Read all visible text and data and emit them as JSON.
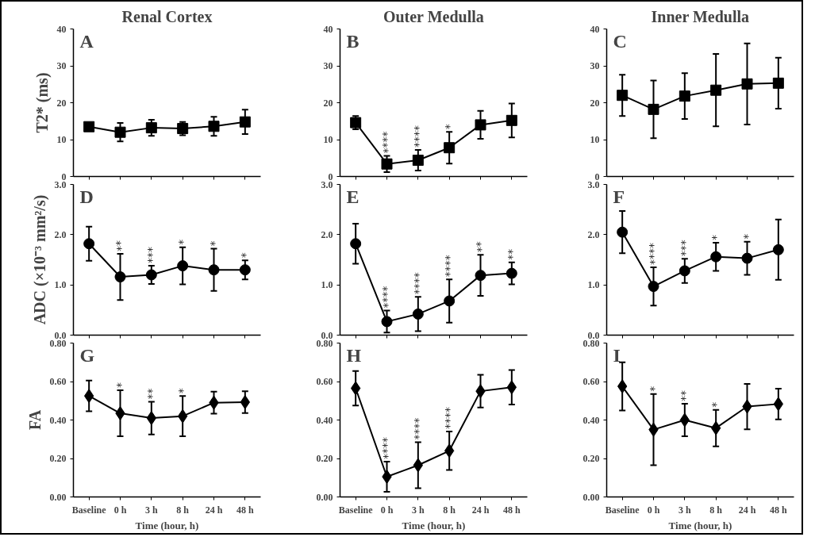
{
  "chart_data": [
    {
      "type": "line",
      "title": "Renal Cortex",
      "ylabel": "T2* (ms)",
      "categories": [
        "Baseline",
        "0 h",
        "3 h",
        "8 h",
        "24 h",
        "48 h"
      ],
      "tick_labels": "y",
      "marker": "square",
      "grid": false,
      "ylim": [
        0,
        40
      ],
      "yticks": [
        0,
        10,
        20,
        30,
        40
      ],
      "series": [
        {
          "color": "#000000",
          "values": [
            13.5,
            12.0,
            13.2,
            13.0,
            13.6,
            14.8
          ],
          "errors": [
            1.0,
            2.5,
            2.2,
            1.8,
            2.6,
            3.3
          ]
        }
      ],
      "annotations": [
        "A"
      ]
    },
    {
      "type": "line",
      "title": "Outer Medulla",
      "categories": [
        "Baseline",
        "0 h",
        "3 h",
        "8 h",
        "24 h",
        "48 h"
      ],
      "tick_labels": "y",
      "marker": "square",
      "grid": false,
      "ylim": [
        0,
        40
      ],
      "yticks": [
        0,
        10,
        20,
        30,
        40
      ],
      "series": [
        {
          "color": "#000000",
          "values": [
            14.6,
            3.4,
            4.4,
            7.8,
            14.0,
            15.2
          ],
          "errors": [
            1.8,
            2.2,
            2.8,
            4.3,
            3.8,
            4.6
          ]
        }
      ],
      "annotations": [
        "B",
        {
          "text": "****",
          "x": "0 h",
          "y": 5.6
        },
        {
          "text": "****",
          "x": "3 h",
          "y": 7.2
        },
        {
          "text": "*",
          "x": "8 h",
          "y": 12.1
        }
      ]
    },
    {
      "type": "line",
      "title": "Inner Medulla",
      "categories": [
        "Baseline",
        "0 h",
        "3 h",
        "8 h",
        "24 h",
        "48 h"
      ],
      "tick_labels": "y",
      "marker": "square",
      "grid": false,
      "ylim": [
        0,
        40
      ],
      "yticks": [
        0,
        10,
        20,
        30,
        40
      ],
      "series": [
        {
          "color": "#000000",
          "values": [
            22.0,
            18.2,
            21.8,
            23.4,
            25.1,
            25.3
          ],
          "errors": [
            5.6,
            7.8,
            6.2,
            9.8,
            11.0,
            6.9
          ]
        }
      ],
      "annotations": [
        "C"
      ]
    },
    {
      "type": "line",
      "ylabel": "ADC (×10⁻³ mm²/s)",
      "categories": [
        "Baseline",
        "0 h",
        "3 h",
        "8 h",
        "24 h",
        "48 h"
      ],
      "tick_labels": "y",
      "marker": "circle",
      "grid": false,
      "ylim": [
        0,
        3
      ],
      "yticks": [
        {
          "value": 0,
          "label": "0.0"
        },
        {
          "value": 1,
          "label": "1.0"
        },
        {
          "value": 2,
          "label": "2.0"
        },
        {
          "value": 3,
          "label": "3.0"
        }
      ],
      "series": [
        {
          "color": "#000000",
          "values": [
            1.82,
            1.16,
            1.2,
            1.38,
            1.3,
            1.3
          ],
          "errors": [
            0.34,
            0.46,
            0.18,
            0.37,
            0.42,
            0.19
          ]
        }
      ],
      "annotations": [
        "D",
        {
          "text": "**",
          "x": "0 h",
          "y": 1.62
        },
        {
          "text": "***",
          "x": "3 h",
          "y": 1.38
        },
        {
          "text": "*",
          "x": "8 h",
          "y": 1.75
        },
        {
          "text": "*",
          "x": "24 h",
          "y": 1.72
        },
        {
          "text": "*",
          "x": "48 h",
          "y": 1.49
        }
      ]
    },
    {
      "type": "line",
      "categories": [
        "Baseline",
        "0 h",
        "3 h",
        "8 h",
        "24 h",
        "48 h"
      ],
      "tick_labels": "y",
      "marker": "circle",
      "grid": false,
      "ylim": [
        0,
        3
      ],
      "yticks": [
        {
          "value": 0,
          "label": "0.0"
        },
        {
          "value": 1,
          "label": "1.0"
        },
        {
          "value": 2,
          "label": "2.0"
        },
        {
          "value": 3,
          "label": "3.0"
        }
      ],
      "series": [
        {
          "color": "#000000",
          "values": [
            1.82,
            0.27,
            0.42,
            0.68,
            1.19,
            1.23
          ],
          "errors": [
            0.4,
            0.22,
            0.34,
            0.43,
            0.41,
            0.22
          ]
        }
      ],
      "annotations": [
        "E",
        {
          "text": "****",
          "x": "0 h",
          "y": 0.49
        },
        {
          "text": "****",
          "x": "3 h",
          "y": 0.76
        },
        {
          "text": "****",
          "x": "8 h",
          "y": 1.11
        },
        {
          "text": "**",
          "x": "24 h",
          "y": 1.6
        },
        {
          "text": "**",
          "x": "48 h",
          "y": 1.45
        }
      ]
    },
    {
      "type": "line",
      "categories": [
        "Baseline",
        "0 h",
        "3 h",
        "8 h",
        "24 h",
        "48 h"
      ],
      "tick_labels": "y",
      "marker": "circle",
      "grid": false,
      "ylim": [
        0,
        3
      ],
      "yticks": [
        {
          "value": 0,
          "label": "0.0"
        },
        {
          "value": 1,
          "label": "1.0"
        },
        {
          "value": 2,
          "label": "2.0"
        },
        {
          "value": 3,
          "label": "3.0"
        }
      ],
      "series": [
        {
          "color": "#000000",
          "values": [
            2.05,
            0.97,
            1.28,
            1.56,
            1.53,
            1.7
          ],
          "errors": [
            0.42,
            0.38,
            0.24,
            0.28,
            0.33,
            0.6
          ]
        }
      ],
      "annotations": [
        "F",
        {
          "text": "****",
          "x": "0 h",
          "y": 1.35
        },
        {
          "text": "***",
          "x": "3 h",
          "y": 1.52
        },
        {
          "text": "*",
          "x": "8 h",
          "y": 1.84
        },
        {
          "text": "*",
          "x": "24 h",
          "y": 1.86
        }
      ]
    },
    {
      "type": "line",
      "ylabel": "FA",
      "xlabel": "Time (hour, h)",
      "categories": [
        "Baseline",
        "0 h",
        "3 h",
        "8 h",
        "24 h",
        "48 h"
      ],
      "marker": "diamond",
      "grid": false,
      "ylim": [
        0,
        0.8
      ],
      "yticks": [
        {
          "value": 0,
          "label": "0.00"
        },
        {
          "value": 0.2,
          "label": "0.20"
        },
        {
          "value": 0.4,
          "label": "0.40"
        },
        {
          "value": 0.6,
          "label": "0.60"
        },
        {
          "value": 0.8,
          "label": "0.80"
        }
      ],
      "series": [
        {
          "color": "#000000",
          "values": [
            0.525,
            0.435,
            0.41,
            0.42,
            0.49,
            0.493
          ],
          "errors": [
            0.08,
            0.12,
            0.085,
            0.105,
            0.057,
            0.057
          ]
        }
      ],
      "annotations": [
        "G",
        {
          "text": "*",
          "x": "0 h",
          "y": 0.555
        },
        {
          "text": "**",
          "x": "3 h",
          "y": 0.495
        },
        {
          "text": "*",
          "x": "8 h",
          "y": 0.525
        }
      ]
    },
    {
      "type": "line",
      "xlabel": "Time (hour, h)",
      "categories": [
        "Baseline",
        "0 h",
        "3 h",
        "8 h",
        "24 h",
        "48 h"
      ],
      "marker": "diamond",
      "grid": false,
      "ylim": [
        0,
        0.8
      ],
      "yticks": [
        {
          "value": 0,
          "label": "0.00"
        },
        {
          "value": 0.2,
          "label": "0.20"
        },
        {
          "value": 0.4,
          "label": "0.40"
        },
        {
          "value": 0.6,
          "label": "0.60"
        },
        {
          "value": 0.8,
          "label": "0.80"
        }
      ],
      "series": [
        {
          "color": "#000000",
          "values": [
            0.565,
            0.105,
            0.165,
            0.24,
            0.55,
            0.57
          ],
          "errors": [
            0.09,
            0.078,
            0.12,
            0.1,
            0.085,
            0.09
          ]
        }
      ],
      "annotations": [
        "H",
        {
          "text": "****",
          "x": "0 h",
          "y": 0.183
        },
        {
          "text": "****",
          "x": "3 h",
          "y": 0.285
        },
        {
          "text": "****",
          "x": "8 h",
          "y": 0.34
        }
      ]
    },
    {
      "type": "line",
      "xlabel": "Time (hour, h)",
      "categories": [
        "Baseline",
        "0 h",
        "3 h",
        "8 h",
        "24 h",
        "48 h"
      ],
      "marker": "diamond",
      "grid": false,
      "ylim": [
        0,
        0.8
      ],
      "yticks": [
        {
          "value": 0,
          "label": "0.00"
        },
        {
          "value": 0.2,
          "label": "0.20"
        },
        {
          "value": 0.4,
          "label": "0.40"
        },
        {
          "value": 0.6,
          "label": "0.60"
        },
        {
          "value": 0.8,
          "label": "0.80"
        }
      ],
      "series": [
        {
          "color": "#000000",
          "values": [
            0.575,
            0.35,
            0.4,
            0.358,
            0.47,
            0.483
          ],
          "errors": [
            0.125,
            0.185,
            0.085,
            0.095,
            0.118,
            0.08
          ]
        }
      ],
      "annotations": [
        "I",
        {
          "text": "*",
          "x": "0 h",
          "y": 0.535
        },
        {
          "text": "**",
          "x": "3 h",
          "y": 0.485
        },
        {
          "text": "*",
          "x": "8 h",
          "y": 0.453
        }
      ]
    }
  ]
}
